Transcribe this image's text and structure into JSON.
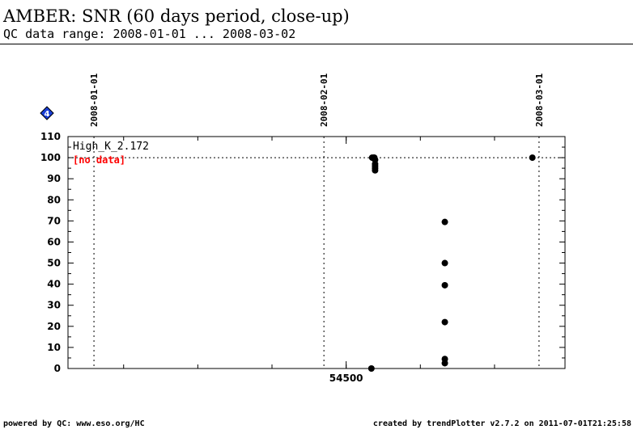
{
  "header": {
    "title": "AMBER: SNR (60 days period, close-up)",
    "subtitle": "QC data range: 2008-01-01 ... 2008-03-02"
  },
  "footer": {
    "left": "powered by QC: www.eso.org/HC",
    "right": "created by trendPlotter v2.7.2 on 2011-07-01T21:25:58"
  },
  "chart_data": {
    "type": "scatter",
    "panel_label": "High_K_2.172",
    "no_data_label": "[no data]",
    "marker_label": "4",
    "reference_line": 100,
    "x_ticks": [
      {
        "value": 54500,
        "label": "54500"
      }
    ],
    "top_date_markers": [
      {
        "value": 54466,
        "label": "2008-01-01"
      },
      {
        "value": 54497,
        "label": "2008-02-01"
      },
      {
        "value": 54526,
        "label": "2008-03-01"
      }
    ],
    "xlim": [
      54462.5,
      54529.5
    ],
    "ylim": [
      0,
      110
    ],
    "y_ticks": [
      0,
      10,
      20,
      30,
      40,
      50,
      60,
      70,
      80,
      90,
      100,
      110
    ],
    "colors": {
      "points": "#000000",
      "no_data": "#ff0000",
      "marker": "#1a3fd6"
    },
    "points": [
      {
        "x": 54503.5,
        "y": 100
      },
      {
        "x": 54503.7,
        "y": 100
      },
      {
        "x": 54503.8,
        "y": 100
      },
      {
        "x": 54503.9,
        "y": 99
      },
      {
        "x": 54503.9,
        "y": 97
      },
      {
        "x": 54503.9,
        "y": 96
      },
      {
        "x": 54503.9,
        "y": 95
      },
      {
        "x": 54503.9,
        "y": 94
      },
      {
        "x": 54503.4,
        "y": 0
      },
      {
        "x": 54513.3,
        "y": 69.5
      },
      {
        "x": 54513.3,
        "y": 50
      },
      {
        "x": 54513.3,
        "y": 39.5
      },
      {
        "x": 54513.3,
        "y": 22
      },
      {
        "x": 54513.3,
        "y": 4.5
      },
      {
        "x": 54513.3,
        "y": 2.5
      },
      {
        "x": 54525.1,
        "y": 100
      }
    ]
  }
}
